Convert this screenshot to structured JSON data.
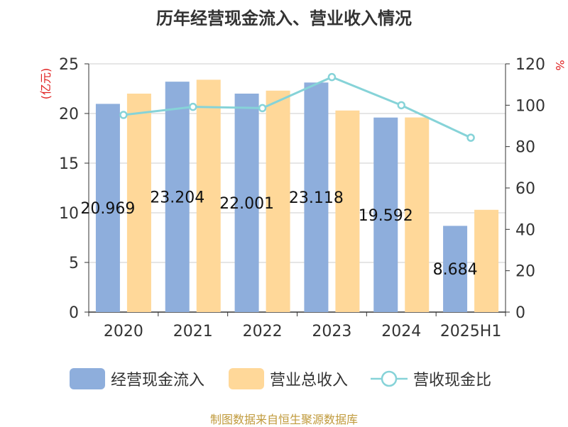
{
  "title": "历年经营现金流入、营业收入情况",
  "source": "制图数据来自恒生聚源数据库",
  "colors": {
    "cash_inflow": "#8eaedc",
    "revenue": "#ffd899",
    "ratio": "#86d3d8",
    "axis_unit": "#e02020"
  },
  "chart_data": {
    "type": "bar",
    "title": "历年经营现金流入、营业收入情况",
    "categories": [
      "2020",
      "2021",
      "2022",
      "2023",
      "2024",
      "2025H1"
    ],
    "y_left": {
      "unit": "(亿元)",
      "min": 0,
      "max": 25,
      "ticks": [
        0,
        5,
        10,
        15,
        20,
        25
      ]
    },
    "y_right": {
      "unit": "%",
      "min": 0,
      "max": 120,
      "ticks": [
        0,
        20,
        40,
        60,
        80,
        100,
        120
      ]
    },
    "grid": true,
    "legend_position": "bottom",
    "series": [
      {
        "name": "经营现金流入",
        "type": "bar",
        "axis": "left",
        "values": [
          20.969,
          23.204,
          22.001,
          23.118,
          19.592,
          8.684
        ],
        "labels": [
          "20.969",
          "23.204",
          "22.001",
          "23.118",
          "19.592",
          "8.684"
        ]
      },
      {
        "name": "营业总收入",
        "type": "bar",
        "axis": "left",
        "values": [
          22.0,
          23.4,
          22.3,
          20.3,
          19.6,
          10.3
        ]
      },
      {
        "name": "营收现金比",
        "type": "line",
        "axis": "right",
        "values": [
          95.3,
          99.2,
          98.6,
          113.6,
          100.0,
          84.3
        ]
      }
    ]
  }
}
